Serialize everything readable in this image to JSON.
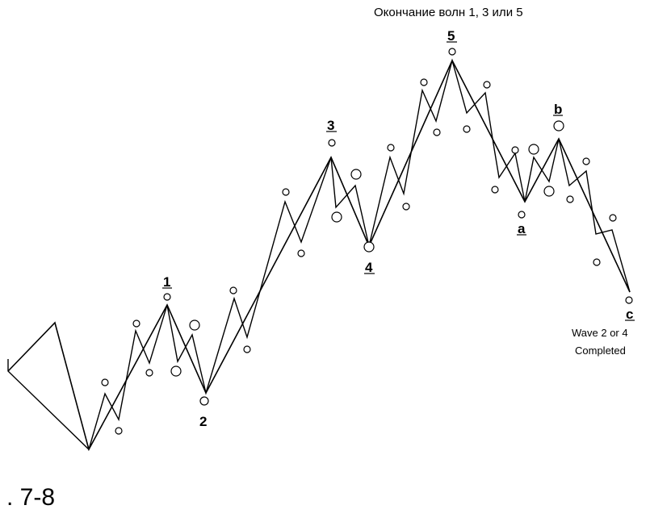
{
  "title": "Окончание волн 1, 3 или 5",
  "note_line1": "Wave 2 or 4",
  "note_line2": "Completed",
  "figure_number": ". 7-8",
  "wave_labels": {
    "w1": "1",
    "w2": "2",
    "w3": "3",
    "w4": "4",
    "w5": "5",
    "a": "a",
    "b": "b",
    "c": "c"
  },
  "colors": {
    "ink": "#000000",
    "background": "#ffffff"
  }
}
